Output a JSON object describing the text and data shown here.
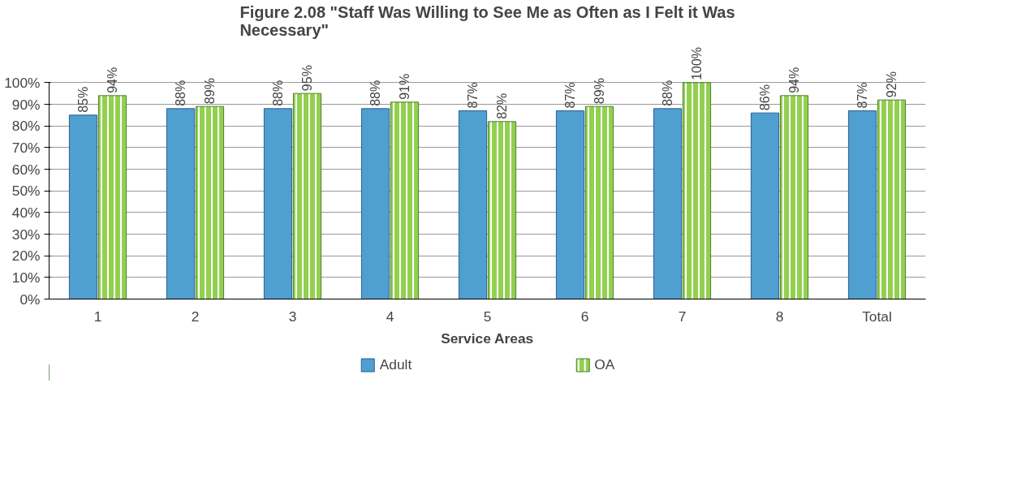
{
  "chart_data": {
    "type": "bar",
    "title": "Figure 2.08 \"Staff Was Willing to See Me as Often as I Felt it Was Necessary\"",
    "xlabel": "Service Areas",
    "categories": [
      "1",
      "2",
      "3",
      "4",
      "5",
      "6",
      "7",
      "8",
      "Total"
    ],
    "series": [
      {
        "name": "Adult",
        "color": "#4f9fd0",
        "values": [
          85,
          88,
          88,
          88,
          87,
          87,
          88,
          86,
          87
        ],
        "value_labels": [
          "85%",
          "88%",
          "88%",
          "88%",
          "87%",
          "87%",
          "88%",
          "86%",
          "87%"
        ]
      },
      {
        "name": "OA",
        "color": "#92d050",
        "values": [
          94,
          89,
          95,
          91,
          82,
          89,
          100,
          94,
          92
        ],
        "value_labels": [
          "94%",
          "89%",
          "95%",
          "91%",
          "82%",
          "89%",
          "100%",
          "94%",
          "92%"
        ]
      }
    ],
    "ylim": [
      0,
      100
    ],
    "yticks": [
      {
        "value": 0,
        "label": "0%"
      },
      {
        "value": 10,
        "label": "10%"
      },
      {
        "value": 20,
        "label": "20%"
      },
      {
        "value": 30,
        "label": "30%"
      },
      {
        "value": 40,
        "label": "40%"
      },
      {
        "value": 50,
        "label": "50%"
      },
      {
        "value": 60,
        "label": "60%"
      },
      {
        "value": 70,
        "label": "70%"
      },
      {
        "value": 80,
        "label": "80%"
      },
      {
        "value": 90,
        "label": "90%"
      },
      {
        "value": 100,
        "label": "100%"
      }
    ],
    "grid": "y",
    "legend": "bottom"
  }
}
